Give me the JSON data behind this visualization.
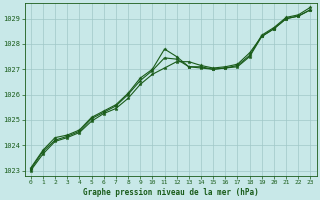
{
  "background_color": "#c8e8e8",
  "grid_color": "#a0c8c8",
  "line_color": "#1a5c1a",
  "xlabel": "Graphe pression niveau de la mer (hPa)",
  "ylim": [
    1022.8,
    1029.6
  ],
  "xlim": [
    -0.5,
    23.5
  ],
  "yticks": [
    1023,
    1024,
    1025,
    1026,
    1027,
    1028,
    1029
  ],
  "xticks": [
    0,
    1,
    2,
    3,
    4,
    5,
    6,
    7,
    8,
    9,
    10,
    11,
    12,
    13,
    14,
    15,
    16,
    17,
    18,
    19,
    20,
    21,
    22,
    23
  ],
  "series": [
    {
      "x": [
        0,
        1,
        2,
        3,
        4,
        5,
        6,
        7,
        8,
        9,
        10,
        11,
        12,
        13,
        14,
        15,
        16,
        17,
        18,
        19,
        20,
        21,
        22,
        23
      ],
      "y": [
        1023.1,
        1023.8,
        1024.3,
        1024.4,
        1024.6,
        1025.1,
        1025.35,
        1025.6,
        1026.05,
        1026.65,
        1027.0,
        1027.8,
        1027.5,
        1027.1,
        1027.1,
        1027.0,
        1027.05,
        1027.15,
        1027.55,
        1028.35,
        1028.65,
        1029.05,
        1029.15,
        1029.45
      ]
    },
    {
      "x": [
        0,
        1,
        2,
        3,
        4,
        5,
        6,
        7,
        8,
        9,
        10,
        11,
        12,
        13,
        14,
        15,
        16,
        17,
        18,
        19,
        20,
        21,
        22,
        23
      ],
      "y": [
        1023.05,
        1023.75,
        1024.2,
        1024.35,
        1024.55,
        1025.05,
        1025.3,
        1025.55,
        1026.0,
        1026.55,
        1026.95,
        1027.45,
        1027.4,
        1027.1,
        1027.05,
        1027.0,
        1027.05,
        1027.1,
        1027.5,
        1028.3,
        1028.6,
        1029.0,
        1029.1,
        1029.35
      ]
    },
    {
      "x": [
        0,
        1,
        2,
        3,
        4,
        5,
        6,
        7,
        8,
        9,
        10,
        11,
        12,
        13,
        14,
        15,
        16,
        17,
        18,
        19,
        20,
        21,
        22,
        23
      ],
      "y": [
        1023.0,
        1023.65,
        1024.15,
        1024.3,
        1024.5,
        1024.95,
        1025.25,
        1025.45,
        1025.85,
        1026.4,
        1026.8,
        1027.05,
        1027.3,
        1027.3,
        1027.15,
        1027.05,
        1027.1,
        1027.2,
        1027.65,
        1028.3,
        1028.6,
        1029.0,
        1029.1,
        1029.35
      ]
    }
  ]
}
